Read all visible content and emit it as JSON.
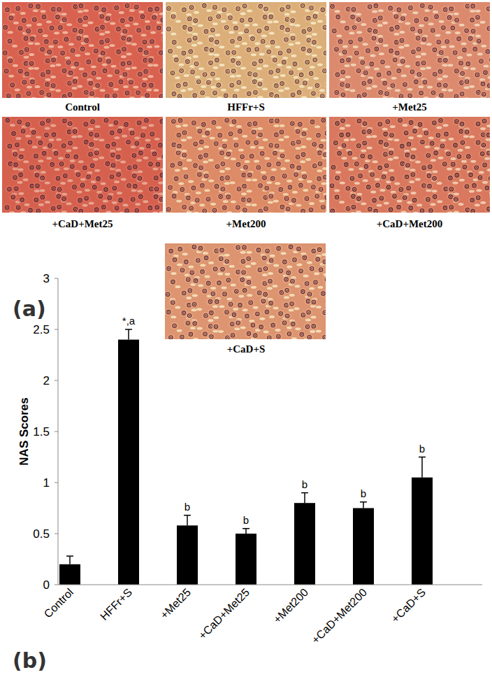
{
  "panel_a": {
    "label": "(a)",
    "captions": [
      "Control",
      "HFFr+S",
      "+Met25",
      "+CaD+Met25",
      "+Met200",
      "+CaD+Met200",
      "+CaD+S"
    ]
  },
  "panel_b": {
    "label": "(b)"
  },
  "chart_data": {
    "type": "bar",
    "y_label": "NAS Scores",
    "categories": [
      "Control",
      "HFFr+S",
      "+Met25",
      "+CaD+Met25",
      "+Met200",
      "+CaD+Met200",
      "+CaD+S"
    ],
    "values": [
      0.2,
      2.4,
      0.58,
      0.5,
      0.8,
      0.75,
      1.05
    ],
    "errors": [
      0.08,
      0.1,
      0.1,
      0.05,
      0.1,
      0.06,
      0.2
    ],
    "annotations": [
      null,
      "*,a",
      "b",
      "b",
      "b",
      "b",
      "b"
    ],
    "color": "#000000",
    "ylim": [
      0,
      3
    ],
    "yticks": [
      0,
      0.5,
      1,
      1.5,
      2,
      2.5,
      3
    ],
    "grid": false
  }
}
